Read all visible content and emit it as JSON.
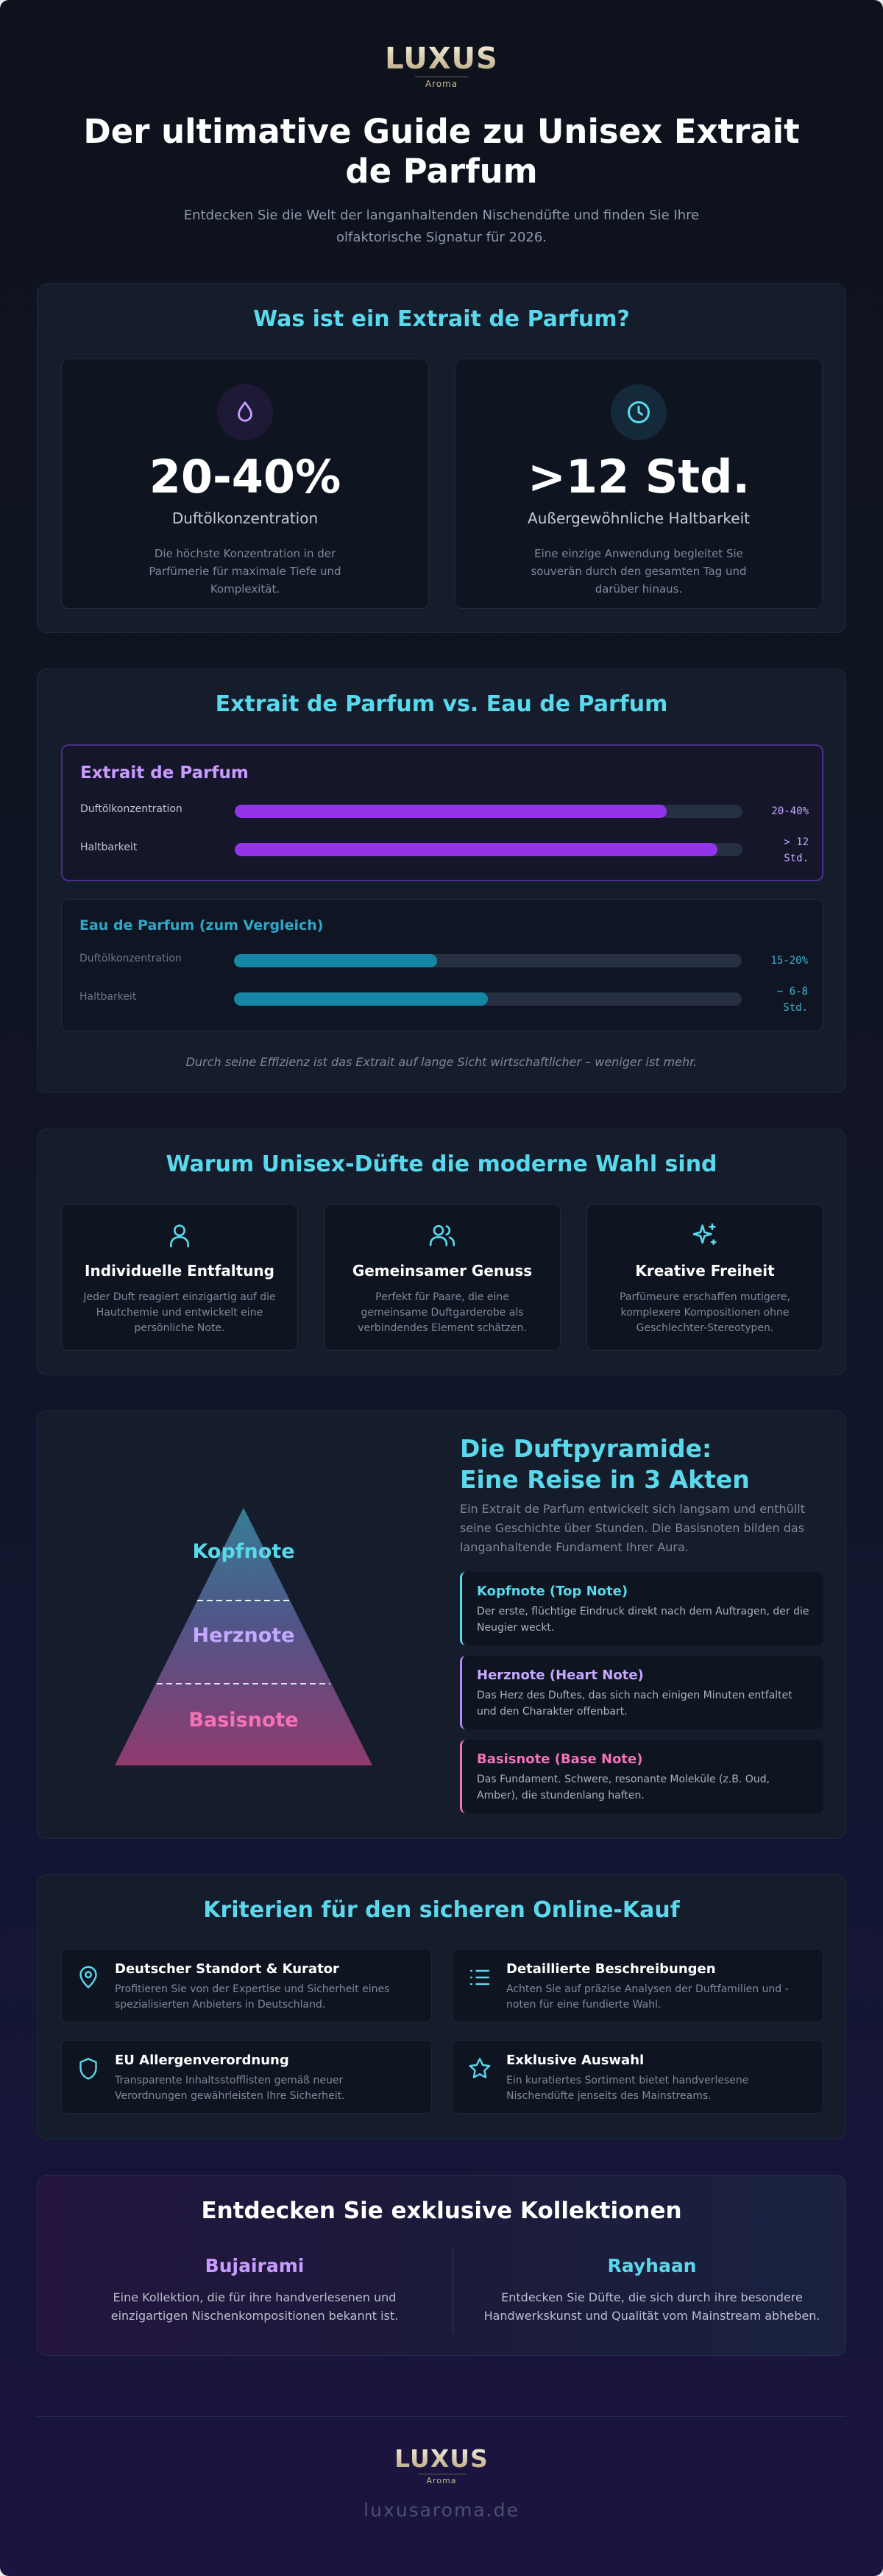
{
  "brand": {
    "name": "LUXUS",
    "sub": "Aroma"
  },
  "header": {
    "title": "Der ultimative Guide zu Unisex Extrait de Parfum",
    "subtitle": "Entdecken Sie die Welt der langanhaltenden Nischendüfte und finden Sie Ihre olfaktorische Signatur für 2026."
  },
  "extrait": {
    "title": "Was ist ein Extrait de Parfum?",
    "stats": [
      {
        "icon": "drop-icon",
        "value": "20-40%",
        "label": "Duftölkonzentration",
        "desc": "Die höchste Konzentration in der Parfümerie für maximale Tiefe und Komplexität."
      },
      {
        "icon": "clock-icon",
        "value": ">12 Std.",
        "label": "Außergewöhnliche Haltbarkeit",
        "desc": "Eine einzige Anwendung begleitet Sie souverän durch den gesamten Tag und darüber hinaus."
      }
    ]
  },
  "compare": {
    "title": "Extrait de Parfum vs. Eau de Parfum",
    "note": "Durch seine Effizienz ist das Extrait auf lange Sicht wirtschaftlicher – weniger ist mehr.",
    "cards": [
      {
        "title": "Extrait de Parfum",
        "color": "#9333ea",
        "rows": [
          {
            "label": "Duftölkonzentration",
            "value": "20-40%",
            "fill": 0.85
          },
          {
            "label": "Haltbarkeit",
            "value": "> 12 Std.",
            "fill": 0.95
          }
        ]
      },
      {
        "title": "Eau de Parfum (zum Vergleich)",
        "color": "#1586a5",
        "rows": [
          {
            "label": "Duftölkonzentration",
            "value": "15-20%",
            "fill": 0.4
          },
          {
            "label": "Haltbarkeit",
            "value": "~ 6-8 Std.",
            "fill": 0.5
          }
        ]
      }
    ]
  },
  "unisex": {
    "title": "Warum Unisex-Düfte die moderne Wahl sind",
    "items": [
      {
        "icon": "user-icon",
        "title": "Individuelle Entfaltung",
        "desc": "Jeder Duft reagiert einzigartig auf die Hautchemie und entwickelt eine persönliche Note."
      },
      {
        "icon": "users-icon",
        "title": "Gemeinsamer Genuss",
        "desc": "Perfekt für Paare, die eine gemeinsame Duftgarderobe als verbindendes Element schätzen."
      },
      {
        "icon": "sparkle-icon",
        "title": "Kreative Freiheit",
        "desc": "Parfümeure erschaffen mutigere, komplexere Kompositionen ohne Geschlechter-Stereotypen."
      }
    ]
  },
  "pyramid": {
    "title": "Die Duftpyramide: Eine Reise in 3 Akten",
    "intro": "Ein Extrait de Parfum entwickelt sich langsam und enthüllt seine Geschichte über Stunden. Die Basisnoten bilden das langanhaltende Fundament Ihrer Aura.",
    "labels": [
      "Kopfnote",
      "Herznote",
      "Basisnote"
    ],
    "notes": [
      {
        "title": "Kopfnote (Top Note)",
        "desc": "Der erste, flüchtige Eindruck direkt nach dem Auftragen, der die Neugier weckt.",
        "color": "#5ad8ec"
      },
      {
        "title": "Herznote (Heart Note)",
        "desc": "Das Herz des Duftes, das sich nach einigen Minuten entfaltet und den Charakter offenbart.",
        "color": "#b388ff"
      },
      {
        "title": "Basisnote (Base Note)",
        "desc": "Das Fundament. Schwere, resonante Moleküle (z.B. Oud, Amber), die stundenlang haften.",
        "color": "#f472b6"
      }
    ]
  },
  "criteria": {
    "title": "Kriterien für den sicheren Online-Kauf",
    "items": [
      {
        "icon": "location-pin-icon",
        "title": "Deutscher Standort & Kurator",
        "desc": "Profitieren Sie von der Expertise und Sicherheit eines spezialisierten Anbieters in Deutschland."
      },
      {
        "icon": "list-icon",
        "title": "Detaillierte Beschreibungen",
        "desc": "Achten Sie auf präzise Analysen der Duftfamilien und -noten für eine fundierte Wahl."
      },
      {
        "icon": "shield-icon",
        "title": "EU Allergenverordnung",
        "desc": "Transparente Inhaltsstofflisten gemäß neuer Verordnungen gewährleisten Ihre Sicherheit."
      },
      {
        "icon": "star-icon",
        "title": "Exklusive Auswahl",
        "desc": "Ein kuratiertes Sortiment bietet handverlesene Nischendüfte jenseits des Mainstreams."
      }
    ]
  },
  "collections": {
    "title": "Entdecken Sie exklusive Kollektionen",
    "items": [
      {
        "name": "Bujairami",
        "desc": "Eine Kollektion, die für ihre handverlesenen und einzigartigen Nischenkompositionen bekannt ist.",
        "color": "#c79bff"
      },
      {
        "name": "Rayhaan",
        "desc": "Entdecken Sie Düfte, die sich durch ihre besondere Handwerkskunst und Qualität vom Mainstream abheben.",
        "color": "#5ad8ec"
      }
    ]
  },
  "footer": {
    "url": "luxusaroma.de"
  }
}
